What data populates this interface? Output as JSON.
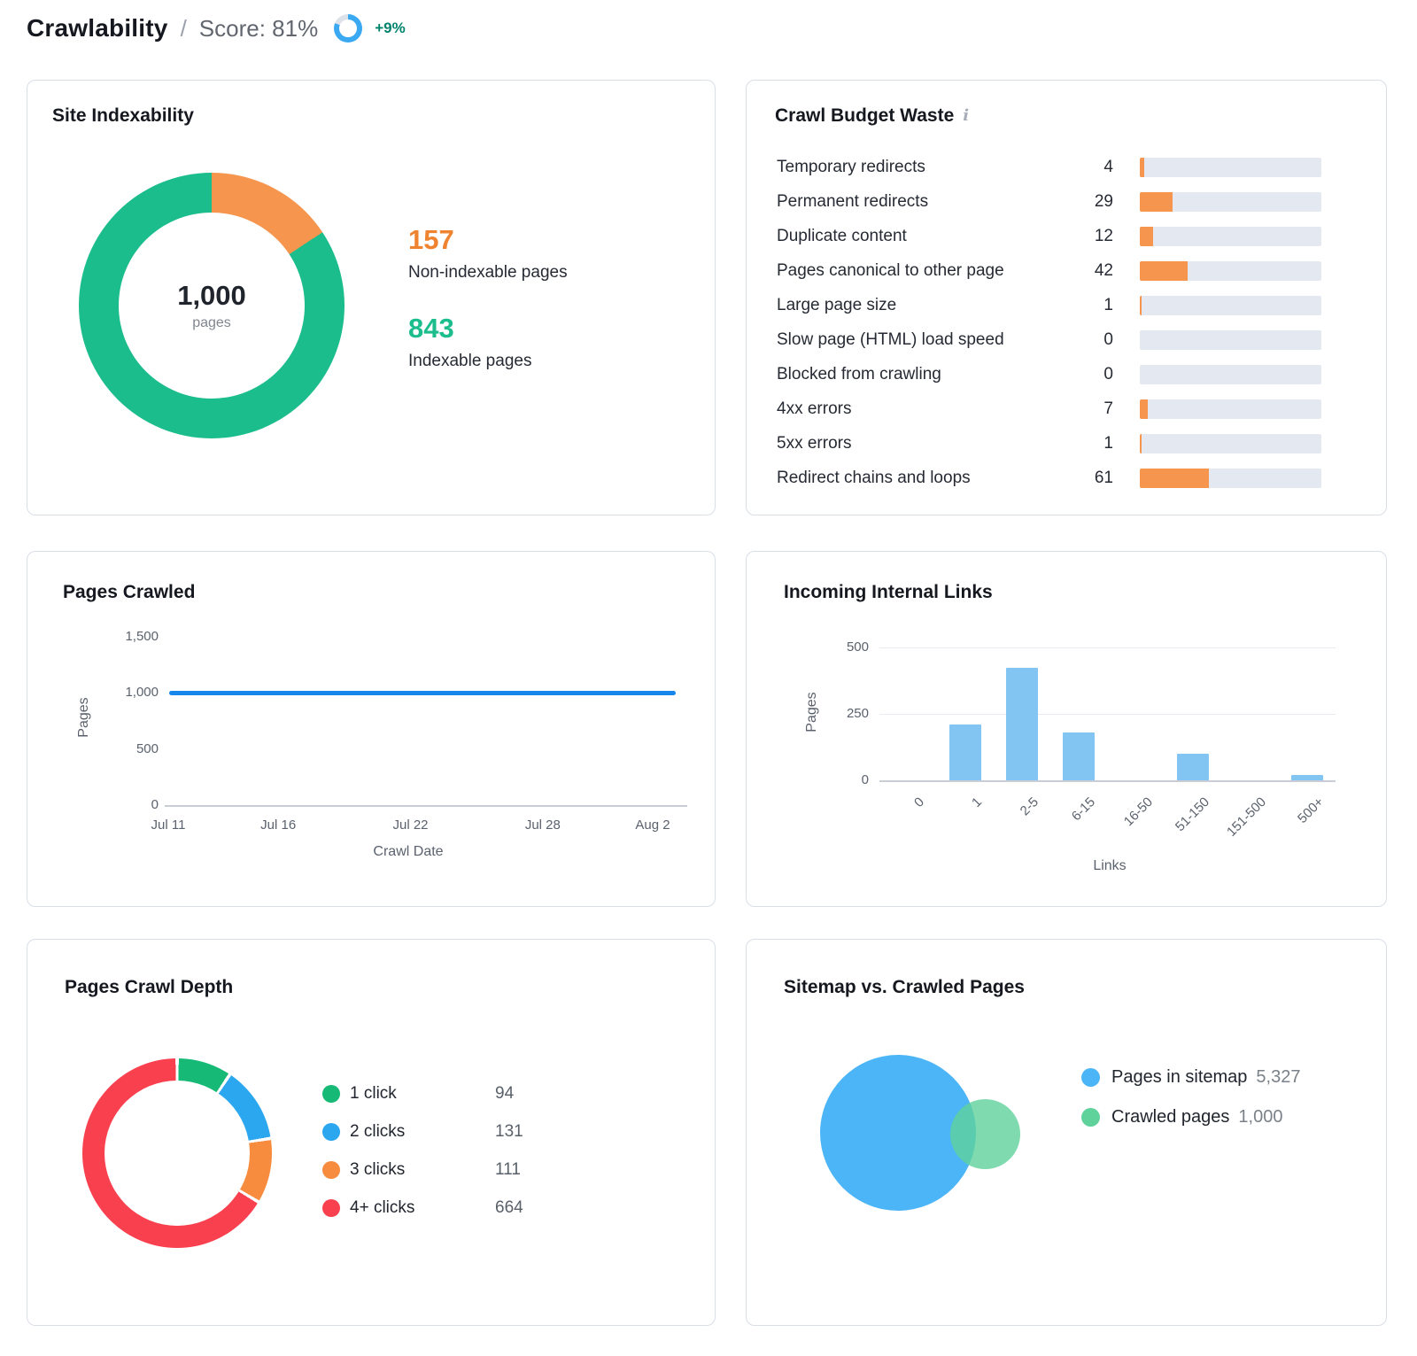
{
  "header": {
    "title": "Crawlability",
    "separator": "/",
    "score_label": "Score: 81%",
    "score_percent": 81,
    "delta": "+9%",
    "ring_color": "#3aa9f2",
    "ring_track_color": "#dde2ea",
    "delta_color": "#00836d"
  },
  "chart_data": [
    {
      "id": "site_indexability",
      "type": "donut",
      "title": "Site Indexability",
      "total": 1000,
      "center_label": "1,000",
      "center_sublabel": "pages",
      "gap_deg": 0,
      "slices": [
        {
          "label": "Non-indexable pages",
          "value": 157,
          "display": "157",
          "color": "#f6954e",
          "text_color": "#ef8330"
        },
        {
          "label": "Indexable pages",
          "value": 843,
          "display": "843",
          "color": "#1cbd8d",
          "text_color": "#1cbd8d"
        }
      ]
    },
    {
      "id": "crawl_budget_waste",
      "type": "hbar",
      "title": "Crawl Budget Waste",
      "info_icon": "i",
      "scale_max": 160,
      "bar_color": "#f6954e",
      "track_color": "#e4e8f0",
      "rows": [
        {
          "label": "Temporary redirects",
          "value": 4
        },
        {
          "label": "Permanent redirects",
          "value": 29
        },
        {
          "label": "Duplicate content",
          "value": 12
        },
        {
          "label": "Pages canonical to other page",
          "value": 42
        },
        {
          "label": "Large page size",
          "value": 1
        },
        {
          "label": "Slow page (HTML) load speed",
          "value": 0
        },
        {
          "label": "Blocked from crawling",
          "value": 0
        },
        {
          "label": "4xx errors",
          "value": 7
        },
        {
          "label": "5xx errors",
          "value": 1
        },
        {
          "label": "Redirect chains and loops",
          "value": 61
        }
      ]
    },
    {
      "id": "pages_crawled",
      "type": "line",
      "title": "Pages Crawled",
      "xlabel": "Crawl Date",
      "ylabel": "Pages",
      "ylim": [
        0,
        1500
      ],
      "ytick_values": [
        0,
        500,
        1000,
        1500
      ],
      "ytick_labels": [
        "0",
        "500",
        "1,000",
        "1,500"
      ],
      "x": [
        "Jul 11",
        "Jul 16",
        "Jul 22",
        "Jul 28",
        "Aug 2"
      ],
      "x_pos_pct": [
        0,
        22.7,
        50,
        77.3,
        100
      ],
      "grid": false,
      "series": [
        {
          "name": "Pages",
          "values": [
            1000,
            1000,
            1000,
            1000,
            1000
          ],
          "color": "#1486ec"
        }
      ]
    },
    {
      "id": "incoming_internal_links",
      "type": "bar",
      "title": "Incoming Internal Links",
      "xlabel": "Links",
      "ylabel": "Pages",
      "ylim": [
        0,
        500
      ],
      "ytick_values": [
        0,
        250,
        500
      ],
      "ytick_labels": [
        "0",
        "250",
        "500"
      ],
      "grid": true,
      "categories": [
        "0",
        "1",
        "2-5",
        "6-15",
        "16-50",
        "51-150",
        "151-500",
        "500+"
      ],
      "values": [
        0,
        210,
        425,
        180,
        0,
        100,
        0,
        20
      ],
      "bar_color": "#82c5f2"
    },
    {
      "id": "pages_crawl_depth",
      "type": "donut",
      "title": "Pages Crawl Depth",
      "total": 1000,
      "gap_deg": 2,
      "slices": [
        {
          "label": "1 click",
          "value": 94,
          "display": "94",
          "color": "#16b975"
        },
        {
          "label": "2 clicks",
          "value": 131,
          "display": "131",
          "color": "#2ba7f0"
        },
        {
          "label": "3 clicks",
          "value": 111,
          "display": "111",
          "color": "#f78b3e"
        },
        {
          "label": "4+ clicks",
          "value": 664,
          "display": "664",
          "color": "#f8404f"
        }
      ]
    },
    {
      "id": "sitemap_vs_crawled",
      "type": "venn",
      "title": "Sitemap vs. Crawled Pages",
      "sets": [
        {
          "label": "Pages in sitemap",
          "value": "5,327",
          "color": "#4cb5f7"
        },
        {
          "label": "Crawled pages",
          "value": "1,000",
          "color": "#5fd29b"
        }
      ]
    }
  ]
}
